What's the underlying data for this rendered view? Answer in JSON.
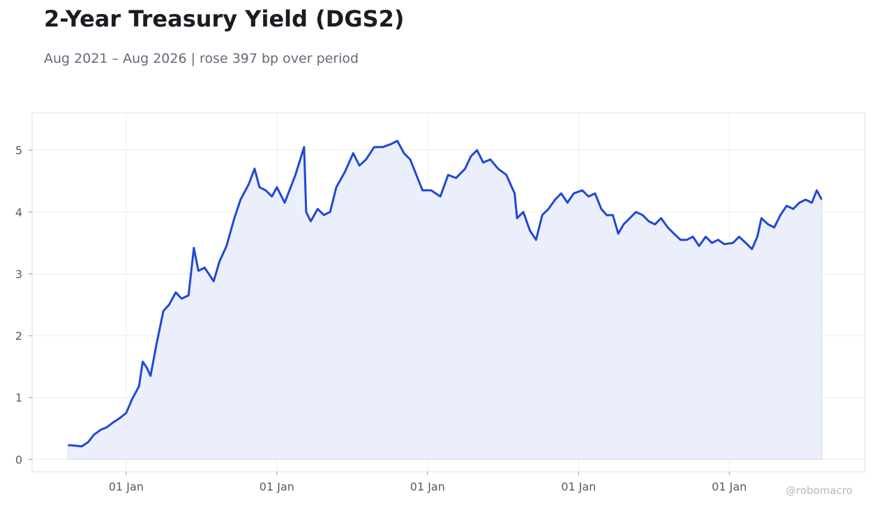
{
  "title": "2-Year Treasury Yield (DGS2)",
  "subtitle": "Aug 2021 – Aug 2026 | rose 397 bp over period",
  "watermark": "@robomacro",
  "colors": {
    "line": "#1f48d6",
    "fill": "#eaeffb",
    "grid": "#ececf0",
    "frame": "#dcdde2"
  },
  "chart_data": {
    "type": "area",
    "title": "2-Year Treasury Yield (DGS2)",
    "subtitle": "Aug 2021 – Aug 2026 | rose 397 bp over period",
    "xlabel": "",
    "ylabel": "",
    "xlim": [
      "2021-05-18",
      "2026-11-26"
    ],
    "ylim": [
      -0.2,
      5.6
    ],
    "grid": true,
    "legend": "none",
    "x_ticks": [
      {
        "date": "2022-01-01",
        "label": "01 Jan"
      },
      {
        "date": "2023-01-01",
        "label": "01 Jan"
      },
      {
        "date": "2024-01-01",
        "label": "01 Jan"
      },
      {
        "date": "2025-01-01",
        "label": "01 Jan"
      },
      {
        "date": "2026-01-01",
        "label": "01 Jan"
      }
    ],
    "y_ticks": [
      0,
      1,
      2,
      3,
      4,
      5
    ],
    "series": [
      {
        "points": [
          [
            "2021-08-13",
            0.23
          ],
          [
            "2021-09-01",
            0.22
          ],
          [
            "2021-09-15",
            0.21
          ],
          [
            "2021-10-01",
            0.28
          ],
          [
            "2021-10-15",
            0.4
          ],
          [
            "2021-11-01",
            0.48
          ],
          [
            "2021-11-15",
            0.52
          ],
          [
            "2021-12-01",
            0.6
          ],
          [
            "2021-12-15",
            0.66
          ],
          [
            "2022-01-01",
            0.75
          ],
          [
            "2022-01-15",
            0.97
          ],
          [
            "2022-02-01",
            1.18
          ],
          [
            "2022-02-10",
            1.58
          ],
          [
            "2022-02-20",
            1.48
          ],
          [
            "2022-03-01",
            1.35
          ],
          [
            "2022-03-15",
            1.85
          ],
          [
            "2022-04-01",
            2.4
          ],
          [
            "2022-04-15",
            2.5
          ],
          [
            "2022-05-01",
            2.7
          ],
          [
            "2022-05-15",
            2.6
          ],
          [
            "2022-06-01",
            2.65
          ],
          [
            "2022-06-14",
            3.42
          ],
          [
            "2022-06-25",
            3.05
          ],
          [
            "2022-07-10",
            3.1
          ],
          [
            "2022-08-01",
            2.88
          ],
          [
            "2022-08-15",
            3.2
          ],
          [
            "2022-09-01",
            3.45
          ],
          [
            "2022-09-20",
            3.9
          ],
          [
            "2022-10-05",
            4.2
          ],
          [
            "2022-10-25",
            4.45
          ],
          [
            "2022-11-08",
            4.7
          ],
          [
            "2022-11-20",
            4.4
          ],
          [
            "2022-12-05",
            4.35
          ],
          [
            "2022-12-20",
            4.25
          ],
          [
            "2023-01-01",
            4.4
          ],
          [
            "2023-01-20",
            4.15
          ],
          [
            "2023-02-15",
            4.6
          ],
          [
            "2023-03-01",
            4.9
          ],
          [
            "2023-03-08",
            5.05
          ],
          [
            "2023-03-13",
            4.0
          ],
          [
            "2023-03-24",
            3.85
          ],
          [
            "2023-04-10",
            4.05
          ],
          [
            "2023-04-25",
            3.95
          ],
          [
            "2023-05-10",
            4.0
          ],
          [
            "2023-05-25",
            4.4
          ],
          [
            "2023-06-15",
            4.65
          ],
          [
            "2023-07-05",
            4.95
          ],
          [
            "2023-07-20",
            4.75
          ],
          [
            "2023-08-05",
            4.85
          ],
          [
            "2023-08-25",
            5.05
          ],
          [
            "2023-09-15",
            5.05
          ],
          [
            "2023-10-05",
            5.1
          ],
          [
            "2023-10-20",
            5.15
          ],
          [
            "2023-11-05",
            4.95
          ],
          [
            "2023-11-20",
            4.85
          ],
          [
            "2023-12-05",
            4.6
          ],
          [
            "2023-12-20",
            4.35
          ],
          [
            "2024-01-10",
            4.35
          ],
          [
            "2024-02-01",
            4.25
          ],
          [
            "2024-02-20",
            4.6
          ],
          [
            "2024-03-10",
            4.55
          ],
          [
            "2024-04-01",
            4.7
          ],
          [
            "2024-04-15",
            4.9
          ],
          [
            "2024-04-30",
            5.0
          ],
          [
            "2024-05-15",
            4.8
          ],
          [
            "2024-06-01",
            4.85
          ],
          [
            "2024-06-20",
            4.7
          ],
          [
            "2024-07-10",
            4.6
          ],
          [
            "2024-07-30",
            4.3
          ],
          [
            "2024-08-05",
            3.9
          ],
          [
            "2024-08-20",
            4.0
          ],
          [
            "2024-09-05",
            3.7
          ],
          [
            "2024-09-20",
            3.55
          ],
          [
            "2024-10-05",
            3.95
          ],
          [
            "2024-10-20",
            4.05
          ],
          [
            "2024-11-05",
            4.2
          ],
          [
            "2024-11-20",
            4.3
          ],
          [
            "2024-12-05",
            4.15
          ],
          [
            "2024-12-20",
            4.3
          ],
          [
            "2025-01-10",
            4.35
          ],
          [
            "2025-01-25",
            4.25
          ],
          [
            "2025-02-10",
            4.3
          ],
          [
            "2025-02-25",
            4.05
          ],
          [
            "2025-03-10",
            3.95
          ],
          [
            "2025-03-25",
            3.95
          ],
          [
            "2025-04-07",
            3.65
          ],
          [
            "2025-04-20",
            3.8
          ],
          [
            "2025-05-05",
            3.9
          ],
          [
            "2025-05-20",
            4.0
          ],
          [
            "2025-06-05",
            3.95
          ],
          [
            "2025-06-20",
            3.85
          ],
          [
            "2025-07-05",
            3.8
          ],
          [
            "2025-07-20",
            3.9
          ],
          [
            "2025-08-05",
            3.75
          ],
          [
            "2025-08-20",
            3.65
          ],
          [
            "2025-09-05",
            3.55
          ],
          [
            "2025-09-20",
            3.55
          ],
          [
            "2025-10-05",
            3.6
          ],
          [
            "2025-10-20",
            3.45
          ],
          [
            "2025-11-05",
            3.6
          ],
          [
            "2025-11-20",
            3.5
          ],
          [
            "2025-12-05",
            3.55
          ],
          [
            "2025-12-20",
            3.48
          ],
          [
            "2026-01-10",
            3.5
          ],
          [
            "2026-01-25",
            3.6
          ],
          [
            "2026-02-10",
            3.5
          ],
          [
            "2026-02-25",
            3.4
          ],
          [
            "2026-03-10",
            3.6
          ],
          [
            "2026-03-20",
            3.9
          ],
          [
            "2026-04-05",
            3.8
          ],
          [
            "2026-04-20",
            3.75
          ],
          [
            "2026-05-05",
            3.95
          ],
          [
            "2026-05-20",
            4.1
          ],
          [
            "2026-06-05",
            4.05
          ],
          [
            "2026-06-20",
            4.15
          ],
          [
            "2026-07-05",
            4.2
          ],
          [
            "2026-07-20",
            4.15
          ],
          [
            "2026-08-01",
            4.35
          ],
          [
            "2026-08-13",
            4.2
          ]
        ]
      }
    ]
  }
}
